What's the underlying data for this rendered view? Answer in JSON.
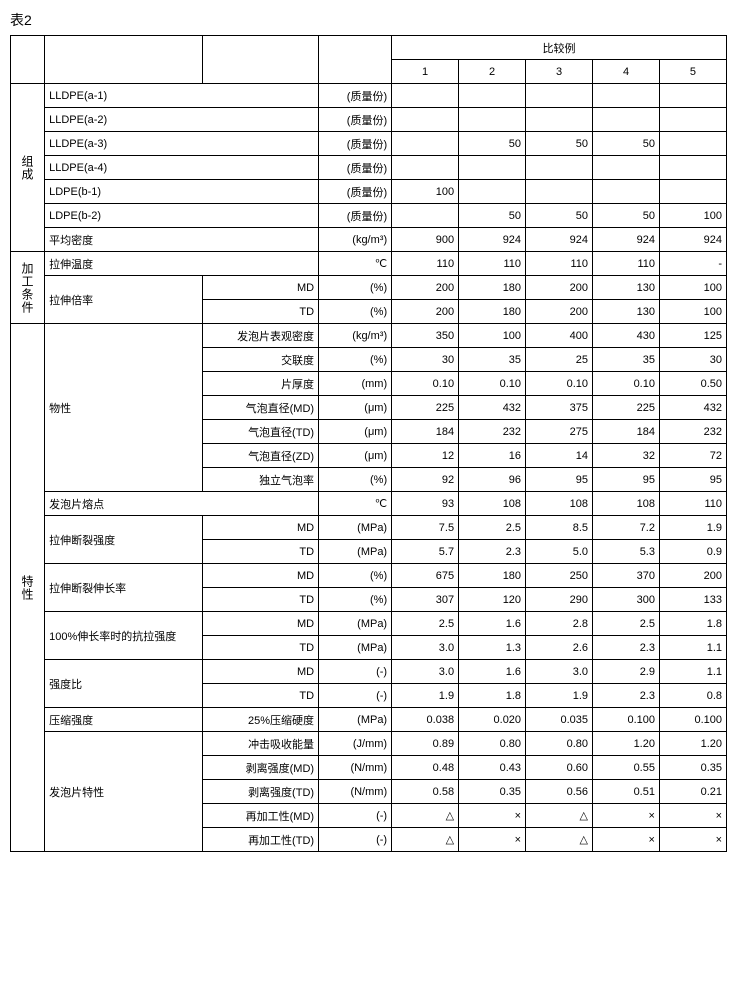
{
  "title": "表2",
  "header": {
    "group": "比较例",
    "cols": [
      "1",
      "2",
      "3",
      "4",
      "5"
    ]
  },
  "sections": {
    "composition": "组成",
    "processing": "加工条件",
    "properties": "特性"
  },
  "rows": [
    {
      "cat": "组成",
      "label": "LLDPE(a-1)",
      "sub": "",
      "unit": "(质量份)",
      "v": [
        "",
        "",
        "",
        "",
        ""
      ]
    },
    {
      "cat": "组成",
      "label": "LLDPE(a-2)",
      "sub": "",
      "unit": "(质量份)",
      "v": [
        "",
        "",
        "",
        "",
        ""
      ]
    },
    {
      "cat": "组成",
      "label": "LLDPE(a-3)",
      "sub": "",
      "unit": "(质量份)",
      "v": [
        "",
        "50",
        "50",
        "50",
        ""
      ]
    },
    {
      "cat": "组成",
      "label": "LLDPE(a-4)",
      "sub": "",
      "unit": "(质量份)",
      "v": [
        "",
        "",
        "",
        "",
        ""
      ]
    },
    {
      "cat": "组成",
      "label": "LDPE(b-1)",
      "sub": "",
      "unit": "(质量份)",
      "v": [
        "100",
        "",
        "",
        "",
        ""
      ]
    },
    {
      "cat": "组成",
      "label": "LDPE(b-2)",
      "sub": "",
      "unit": "(质量份)",
      "v": [
        "",
        "50",
        "50",
        "50",
        "100"
      ]
    },
    {
      "cat": "组成",
      "label": "平均密度",
      "sub": "",
      "unit": "(kg/m³)",
      "v": [
        "900",
        "924",
        "924",
        "924",
        "924"
      ]
    },
    {
      "cat": "加工条件",
      "label": "拉伸温度",
      "sub": "",
      "unit": "℃",
      "v": [
        "110",
        "110",
        "110",
        "110",
        "-"
      ]
    },
    {
      "cat": "加工条件",
      "label": "拉伸倍率",
      "sub": "MD",
      "unit": "(%)",
      "v": [
        "200",
        "180",
        "200",
        "130",
        "100"
      ]
    },
    {
      "cat": "加工条件",
      "label": "",
      "sub": "TD",
      "unit": "(%)",
      "v": [
        "200",
        "180",
        "200",
        "130",
        "100"
      ]
    },
    {
      "cat": "特性",
      "label": "物性",
      "sub": "发泡片表观密度",
      "unit": "(kg/m³)",
      "v": [
        "350",
        "100",
        "400",
        "430",
        "125"
      ]
    },
    {
      "cat": "特性",
      "label": "",
      "sub": "交联度",
      "unit": "(%)",
      "v": [
        "30",
        "35",
        "25",
        "35",
        "30"
      ]
    },
    {
      "cat": "特性",
      "label": "",
      "sub": "片厚度",
      "unit": "(mm)",
      "v": [
        "0.10",
        "0.10",
        "0.10",
        "0.10",
        "0.50"
      ]
    },
    {
      "cat": "特性",
      "label": "",
      "sub": "气泡直径(MD)",
      "unit": "(μm)",
      "v": [
        "225",
        "432",
        "375",
        "225",
        "432"
      ]
    },
    {
      "cat": "特性",
      "label": "",
      "sub": "气泡直径(TD)",
      "unit": "(μm)",
      "v": [
        "184",
        "232",
        "275",
        "184",
        "232"
      ]
    },
    {
      "cat": "特性",
      "label": "",
      "sub": "气泡直径(ZD)",
      "unit": "(μm)",
      "v": [
        "12",
        "16",
        "14",
        "32",
        "72"
      ]
    },
    {
      "cat": "特性",
      "label": "",
      "sub": "独立气泡率",
      "unit": "(%)",
      "v": [
        "92",
        "96",
        "95",
        "95",
        "95"
      ]
    },
    {
      "cat": "特性",
      "label": "发泡片熔点",
      "sub": "",
      "unit": "℃",
      "v": [
        "93",
        "108",
        "108",
        "108",
        "110"
      ]
    },
    {
      "cat": "特性",
      "label": "拉伸断裂强度",
      "sub": "MD",
      "unit": "(MPa)",
      "v": [
        "7.5",
        "2.5",
        "8.5",
        "7.2",
        "1.9"
      ]
    },
    {
      "cat": "特性",
      "label": "",
      "sub": "TD",
      "unit": "(MPa)",
      "v": [
        "5.7",
        "2.3",
        "5.0",
        "5.3",
        "0.9"
      ]
    },
    {
      "cat": "特性",
      "label": "拉伸断裂伸长率",
      "sub": "MD",
      "unit": "(%)",
      "v": [
        "675",
        "180",
        "250",
        "370",
        "200"
      ]
    },
    {
      "cat": "特性",
      "label": "",
      "sub": "TD",
      "unit": "(%)",
      "v": [
        "307",
        "120",
        "290",
        "300",
        "133"
      ]
    },
    {
      "cat": "特性",
      "label": "100%伸长率时的抗拉强度",
      "sub": "MD",
      "unit": "(MPa)",
      "v": [
        "2.5",
        "1.6",
        "2.8",
        "2.5",
        "1.8"
      ]
    },
    {
      "cat": "特性",
      "label": "",
      "sub": "TD",
      "unit": "(MPa)",
      "v": [
        "3.0",
        "1.3",
        "2.6",
        "2.3",
        "1.1"
      ]
    },
    {
      "cat": "特性",
      "label": "强度比",
      "sub": "MD",
      "unit": "(-)",
      "v": [
        "3.0",
        "1.6",
        "3.0",
        "2.9",
        "1.1"
      ]
    },
    {
      "cat": "特性",
      "label": "",
      "sub": "TD",
      "unit": "(-)",
      "v": [
        "1.9",
        "1.8",
        "1.9",
        "2.3",
        "0.8"
      ]
    },
    {
      "cat": "特性",
      "label": "压缩强度",
      "sub": "25%压缩硬度",
      "unit": "(MPa)",
      "v": [
        "0.038",
        "0.020",
        "0.035",
        "0.100",
        "0.100"
      ]
    },
    {
      "cat": "特性",
      "label": "发泡片特性",
      "sub": "冲击吸收能量",
      "unit": "(J/mm)",
      "v": [
        "0.89",
        "0.80",
        "0.80",
        "1.20",
        "1.20"
      ]
    },
    {
      "cat": "特性",
      "label": "",
      "sub": "剥离强度(MD)",
      "unit": "(N/mm)",
      "v": [
        "0.48",
        "0.43",
        "0.60",
        "0.55",
        "0.35"
      ]
    },
    {
      "cat": "特性",
      "label": "",
      "sub": "剥离强度(TD)",
      "unit": "(N/mm)",
      "v": [
        "0.58",
        "0.35",
        "0.56",
        "0.51",
        "0.21"
      ]
    },
    {
      "cat": "特性",
      "label": "",
      "sub": "再加工性(MD)",
      "unit": "(-)",
      "v": [
        "△",
        "×",
        "△",
        "×",
        "×"
      ]
    },
    {
      "cat": "特性",
      "label": "",
      "sub": "再加工性(TD)",
      "unit": "(-)",
      "v": [
        "△",
        "×",
        "△",
        "×",
        "×"
      ]
    }
  ],
  "spans": {
    "composition_rows": 7,
    "processing_rows": 3,
    "properties_rows": 22,
    "stretch_ratio_rows": 2,
    "physical_rows": 7,
    "tensile_break_rows": 2,
    "elongation_rows": 2,
    "tensile_100_rows": 2,
    "strength_ratio_rows": 2,
    "compress_rows": 1,
    "foam_sheet_rows": 5
  }
}
